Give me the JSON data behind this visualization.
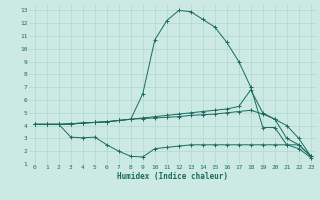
{
  "xlabel": "Humidex (Indice chaleur)",
  "bg_color": "#cce9e4",
  "line_color": "#1a6b5e",
  "grid_color": "#b0d8d0",
  "xlim": [
    -0.5,
    23.5
  ],
  "ylim": [
    1,
    13.5
  ],
  "xticks": [
    0,
    1,
    2,
    3,
    4,
    5,
    6,
    7,
    8,
    9,
    10,
    11,
    12,
    13,
    14,
    15,
    16,
    17,
    18,
    19,
    20,
    21,
    22,
    23
  ],
  "yticks": [
    1,
    2,
    3,
    4,
    5,
    6,
    7,
    8,
    9,
    10,
    11,
    12,
    13
  ],
  "line1_x": [
    0,
    1,
    2,
    3,
    4,
    5,
    6,
    7,
    8,
    9,
    10,
    11,
    12,
    13,
    14,
    15,
    16,
    17,
    18,
    19,
    20,
    21,
    22,
    23
  ],
  "line1_y": [
    4.1,
    4.1,
    4.1,
    4.15,
    4.2,
    4.25,
    4.3,
    4.4,
    4.5,
    6.5,
    10.7,
    12.2,
    13.0,
    12.9,
    12.3,
    11.7,
    10.5,
    9.0,
    7.0,
    3.85,
    3.85,
    2.5,
    2.2,
    1.5
  ],
  "line2_x": [
    0,
    1,
    2,
    3,
    4,
    5,
    6,
    7,
    8,
    9,
    10,
    11,
    12,
    13,
    14,
    15,
    16,
    17,
    18,
    19,
    20,
    21,
    22,
    23
  ],
  "line2_y": [
    4.1,
    4.1,
    4.1,
    4.15,
    4.2,
    4.25,
    4.3,
    4.4,
    4.5,
    4.6,
    4.7,
    4.8,
    4.9,
    5.0,
    5.1,
    5.2,
    5.3,
    5.5,
    6.8,
    5.0,
    4.5,
    4.0,
    3.0,
    1.6
  ],
  "line3_x": [
    0,
    1,
    2,
    3,
    4,
    5,
    6,
    7,
    8,
    9,
    10,
    11,
    12,
    13,
    14,
    15,
    16,
    17,
    18,
    19,
    20,
    21,
    22,
    23
  ],
  "line3_y": [
    4.1,
    4.1,
    4.1,
    3.1,
    3.05,
    3.1,
    2.5,
    2.0,
    1.6,
    1.55,
    2.2,
    2.3,
    2.4,
    2.5,
    2.5,
    2.5,
    2.5,
    2.5,
    2.5,
    2.5,
    2.5,
    2.5,
    2.5,
    1.6
  ],
  "line4_x": [
    0,
    1,
    2,
    3,
    4,
    5,
    6,
    7,
    8,
    9,
    10,
    11,
    12,
    13,
    14,
    15,
    16,
    17,
    18,
    19,
    20,
    21,
    22,
    23
  ],
  "line4_y": [
    4.1,
    4.1,
    4.1,
    4.1,
    4.2,
    4.25,
    4.3,
    4.4,
    4.5,
    4.55,
    4.6,
    4.65,
    4.7,
    4.8,
    4.85,
    4.9,
    5.0,
    5.1,
    5.2,
    4.9,
    4.5,
    3.0,
    2.5,
    1.6
  ]
}
